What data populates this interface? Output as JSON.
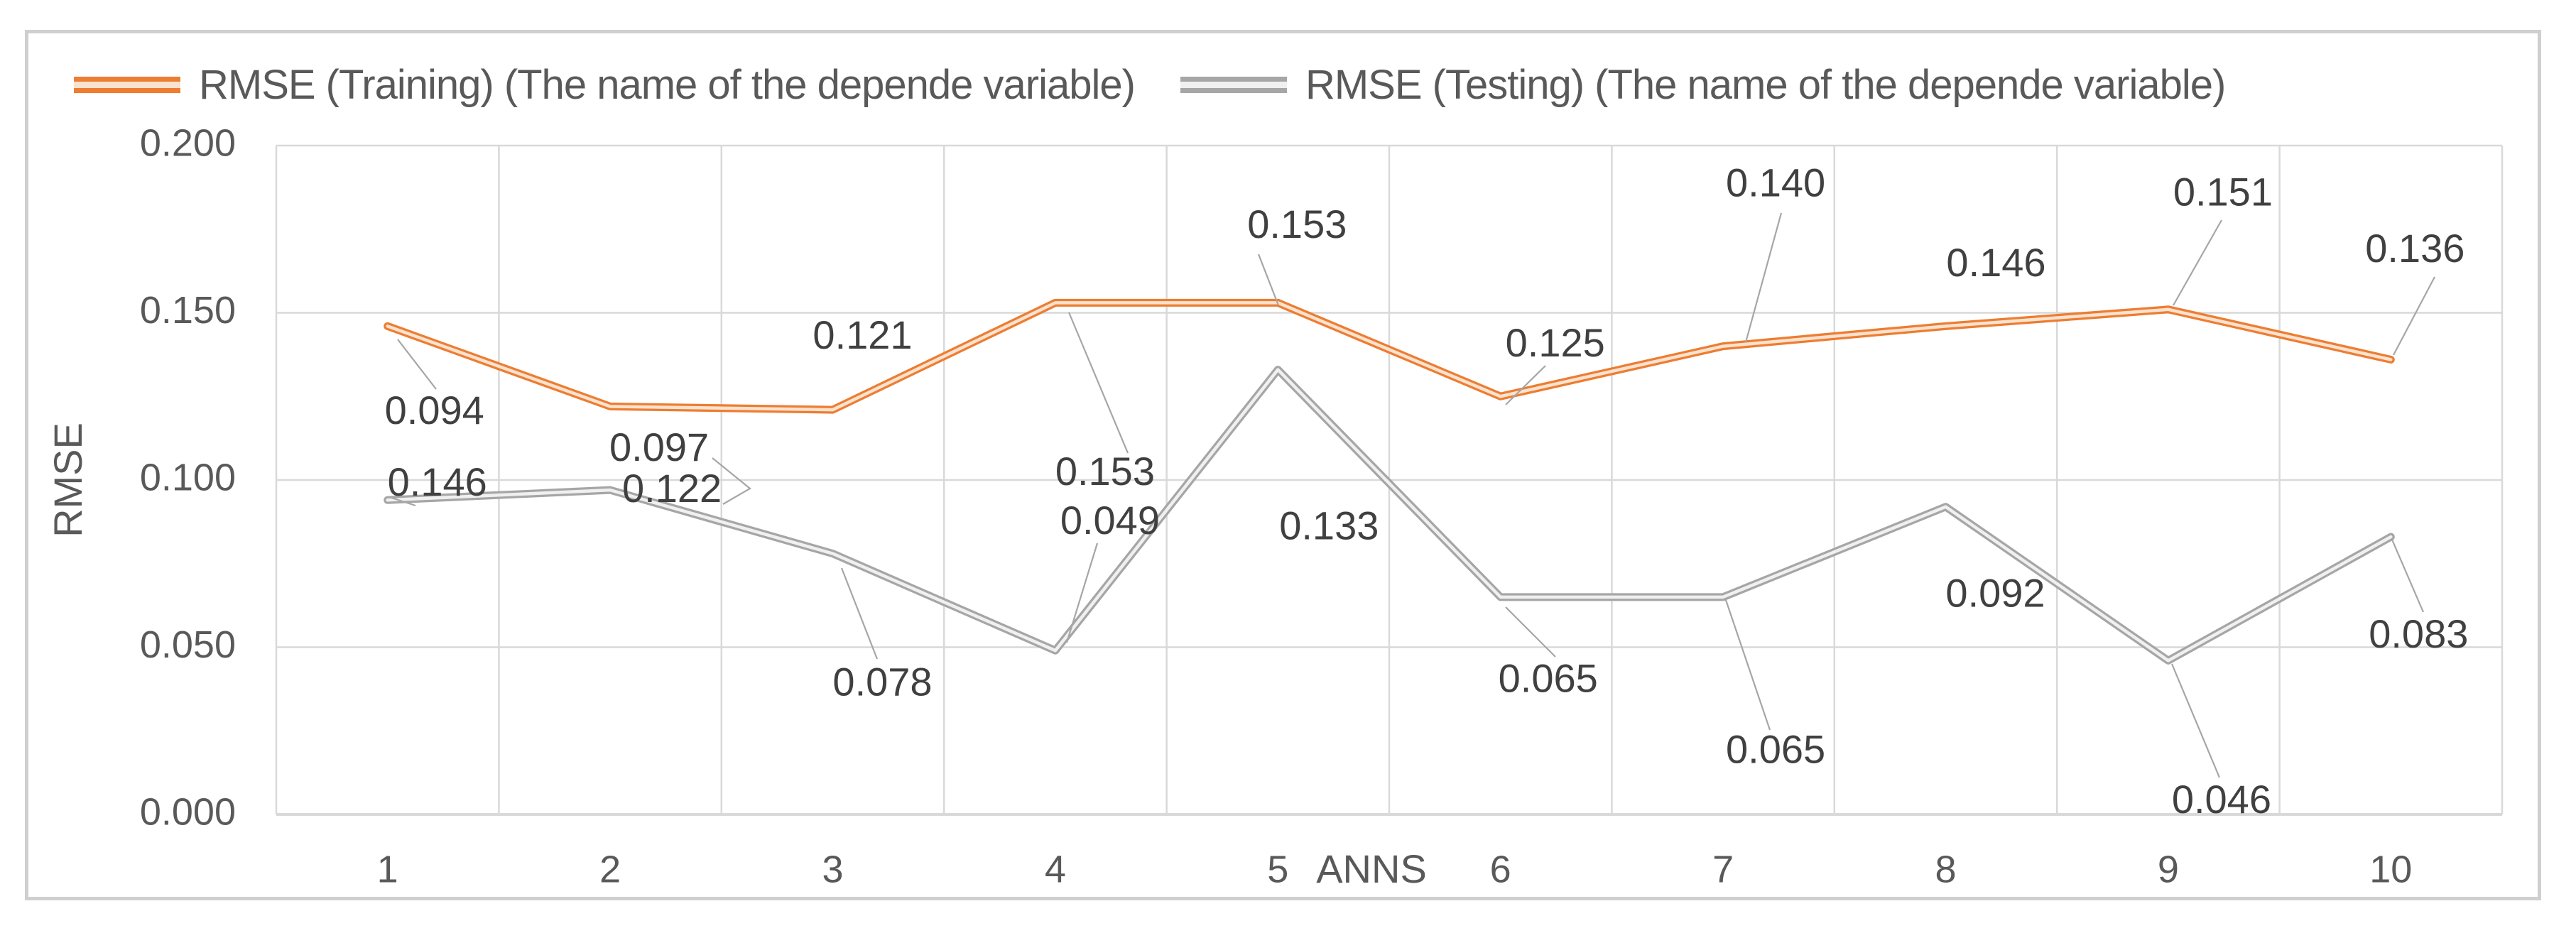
{
  "chart_data": {
    "type": "line",
    "title": "",
    "xlabel": "ANNS",
    "ylabel": "RMSE",
    "x": [
      "1",
      "2",
      "3",
      "4",
      "5",
      "6",
      "7",
      "8",
      "9",
      "10"
    ],
    "ylim": [
      0.0,
      0.2
    ],
    "ytick_labels": [
      "0.000",
      "0.050",
      "0.100",
      "0.150",
      "0.200"
    ],
    "grid": "both",
    "legend_position": "top",
    "label_decimals": 3,
    "series": [
      {
        "name": "RMSE (Training) (The name of the depende variable)",
        "color": "#ED7D31",
        "inner_color": "#F9E2D0",
        "values": [
          0.146,
          0.122,
          0.121,
          0.153,
          0.153,
          0.125,
          0.14,
          0.146,
          0.151,
          0.136
        ]
      },
      {
        "name": "RMSE (Testing) (The name of the depende variable)",
        "color": "#A6A6A6",
        "inner_color": "#F0F0F0",
        "values": [
          0.094,
          0.097,
          0.078,
          0.049,
          0.133,
          0.065,
          0.065,
          0.092,
          0.046,
          0.083
        ]
      }
    ]
  },
  "colors": {
    "grid": "#D9D9D9",
    "axis_line": "#D9D9D9",
    "tick_text": "#595959",
    "axis_title_text": "#595959",
    "data_label_text": "#404040",
    "leader_line": "#A6A6A6",
    "chart_border": "#D0CECE",
    "background": "#FFFFFF"
  }
}
